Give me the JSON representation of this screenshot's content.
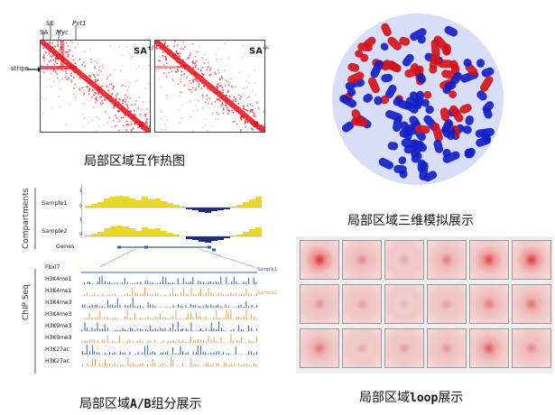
{
  "heatmap_panel": {
    "left_label": "SA",
    "left_label_sup": "+/+",
    "right_label": "SA",
    "right_label_sup": "-/-",
    "top_labels": [
      "SE",
      "Pvt1",
      "SA",
      "Myc"
    ],
    "stripe_label": "stripe",
    "caption": "局部区域互作热图"
  },
  "model3d_panel": {
    "caption": "局部区域三维模拟展示"
  },
  "compartment_panel": {
    "title_compartments": "Compartments",
    "title_chip": "ChIP Seq",
    "sample1": "Sample1",
    "sample2": "Sample2",
    "genes": "Genes",
    "scale_top": "1",
    "scale_zero": "0",
    "chip_tracks": [
      "Fbxl7",
      "H3K4me1",
      "H3K4me1",
      "H3K4me3",
      "H3K4me3",
      "H3K9me3",
      "H3K9me3",
      "H3K27ac",
      "H3K27ac"
    ],
    "legend_sample1": "Sample1",
    "legend_sample2": "Sample2",
    "caption_prefix": "局部区域",
    "caption_mono": "A/B",
    "caption_suffix": "组分展示"
  },
  "loop_panel": {
    "caption_prefix": "局部区域",
    "caption_mono": "loop",
    "caption_suffix": "展示"
  },
  "colors": {
    "heat_red": "#e8141c",
    "model_red": "#d4141a",
    "model_blue": "#1520c8",
    "track_yellow": "#e8d82a",
    "track_navy": "#1e2a78",
    "chip_blue": "#3a5fa8",
    "chip_orange": "#f0a050"
  }
}
